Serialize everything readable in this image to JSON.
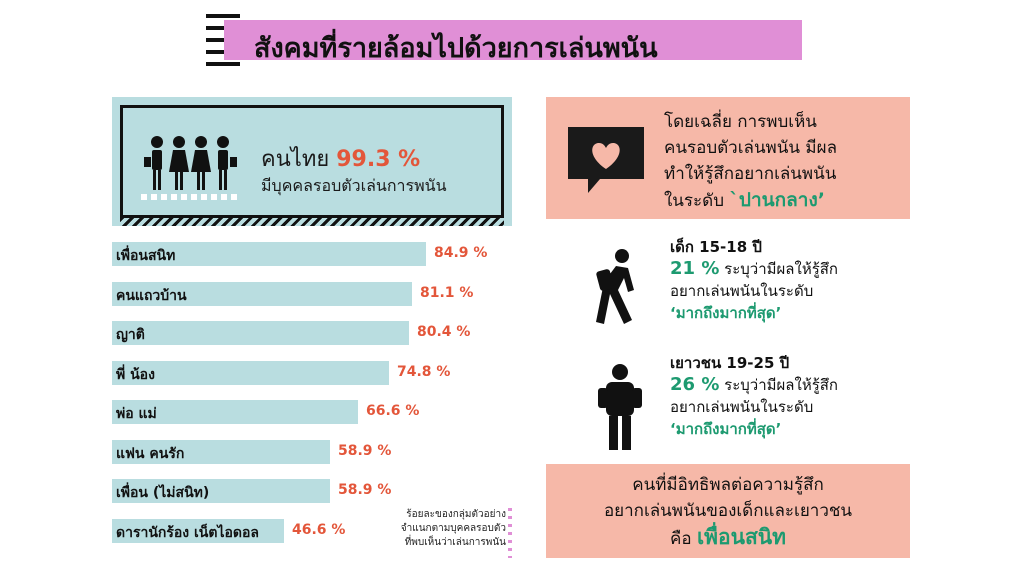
{
  "title": "สังคมที่รายล้อมไปด้วยการเล่นพนัน",
  "summary": {
    "prefix": "คนไทย",
    "percent": "99.3 %",
    "line2": "มีบุคคลรอบตัวเล่นการพนัน"
  },
  "chart_data": {
    "type": "bar",
    "orientation": "horizontal",
    "categories": [
      "เพื่อนสนิท",
      "คนแถวบ้าน",
      "ญาติ",
      "พี่ น้อง",
      "พ่อ แม่",
      "แฟน คนรัก",
      "เพื่อน (ไม่สนิท)",
      "ดารานักร้อง เน็ตไอดอล"
    ],
    "values": [
      84.9,
      81.1,
      80.4,
      74.8,
      66.6,
      58.9,
      58.9,
      46.6
    ],
    "value_labels": [
      "84.9 %",
      "81.1 %",
      "80.4 %",
      "74.8 %",
      "66.6 %",
      "58.9 %",
      "58.9 %",
      "46.6 %"
    ],
    "xlim": [
      0,
      100
    ],
    "colors": {
      "bar": "#b9dde0",
      "value": "#e3563a"
    }
  },
  "footnote": [
    "ร้อยละของกลุ่มตัวอย่าง",
    "จำแนกตามบุคคลรอบตัว",
    "ที่พบเห็นว่าเล่นการพนัน"
  ],
  "panel_top": {
    "lines": [
      "โดยเฉลี่ย การพบเห็น",
      "คนรอบตัวเล่นพนัน มีผล",
      "ทำให้รู้สึกอยากเล่นพนัน"
    ],
    "prefix": "ในระดับ",
    "level": "`ปานกลาง’"
  },
  "groups": [
    {
      "head": "เด็ก 15-18 ปี",
      "pct": "21 %",
      "line1": "ระบุว่ามีผลให้รู้สึก",
      "line2": "อยากเล่นพนันในระดับ",
      "level": "‘มากถึงมากที่สุด’"
    },
    {
      "head": "เยาวชน 19-25 ปี",
      "pct": "26 %",
      "line1": "ระบุว่ามีผลให้รู้สึก",
      "line2": "อยากเล่นพนันในระดับ",
      "level": "‘มากถึงมากที่สุด’"
    }
  ],
  "panel_bottom": {
    "line1": "คนที่มีอิทธิพลต่อความรู้สึก",
    "line2": "อยากเล่นพนันของเด็กและเยาวชน",
    "prefix": "คือ",
    "highlight": "เพื่อนสนิท"
  },
  "colors": {
    "title_band": "#e08fd6",
    "teal_panel": "#b9dde0",
    "salmon_panel": "#f6b8a8",
    "accent_red": "#e3563a",
    "accent_green": "#1d9a70"
  }
}
